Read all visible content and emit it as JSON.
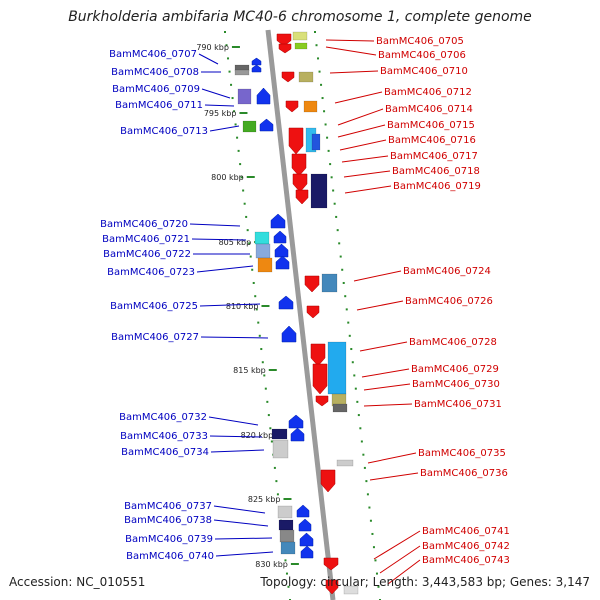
{
  "title": "Burkholderia ambifaria MC40-6 chromosome 1, complete genome",
  "footer": {
    "accession": "Accession: NC_010551",
    "summary": "Topology: circular; Length: 3,443,583 bp; Genes: 3,147"
  },
  "colors": {
    "backbone": "#9a9a9a",
    "dots": "#2a8a2a",
    "left_label": "#0000c0",
    "right_label": "#d00000",
    "forward_gene": "#ee1111",
    "reverse_gene": "#1133ee"
  },
  "scale_ticks": [
    {
      "label": "790 kbp"
    },
    {
      "label": "795 kbp"
    },
    {
      "label": "800 kbp"
    },
    {
      "label": "805 kbp"
    },
    {
      "label": "810 kbp"
    },
    {
      "label": "815 kbp"
    },
    {
      "label": "820 kbp"
    },
    {
      "label": "825 kbp"
    },
    {
      "label": "830 kbp"
    }
  ],
  "left_genes": [
    {
      "label": "BamMC406_0707"
    },
    {
      "label": "BamMC406_0708"
    },
    {
      "label": "BamMC406_0709"
    },
    {
      "label": "BamMC406_0711"
    },
    {
      "label": "BamMC406_0713"
    },
    {
      "label": "BamMC406_0720"
    },
    {
      "label": "BamMC406_0721"
    },
    {
      "label": "BamMC406_0722"
    },
    {
      "label": "BamMC406_0723"
    },
    {
      "label": "BamMC406_0725"
    },
    {
      "label": "BamMC406_0727"
    },
    {
      "label": "BamMC406_0732"
    },
    {
      "label": "BamMC406_0733"
    },
    {
      "label": "BamMC406_0734"
    },
    {
      "label": "BamMC406_0737"
    },
    {
      "label": "BamMC406_0738"
    },
    {
      "label": "BamMC406_0739"
    },
    {
      "label": "BamMC406_0740"
    }
  ],
  "right_genes": [
    {
      "label": "BamMC406_0705"
    },
    {
      "label": "BamMC406_0706"
    },
    {
      "label": "BamMC406_0710"
    },
    {
      "label": "BamMC406_0712"
    },
    {
      "label": "BamMC406_0714"
    },
    {
      "label": "BamMC406_0715"
    },
    {
      "label": "BamMC406_0716"
    },
    {
      "label": "BamMC406_0717"
    },
    {
      "label": "BamMC406_0718"
    },
    {
      "label": "BamMC406_0719"
    },
    {
      "label": "BamMC406_0724"
    },
    {
      "label": "BamMC406_0726"
    },
    {
      "label": "BamMC406_0728"
    },
    {
      "label": "BamMC406_0729"
    },
    {
      "label": "BamMC406_0730"
    },
    {
      "label": "BamMC406_0731"
    },
    {
      "label": "BamMC406_0735"
    },
    {
      "label": "BamMC406_0736"
    },
    {
      "label": "BamMC406_0741"
    },
    {
      "label": "BamMC406_0742"
    },
    {
      "label": "BamMC406_0743"
    }
  ]
}
